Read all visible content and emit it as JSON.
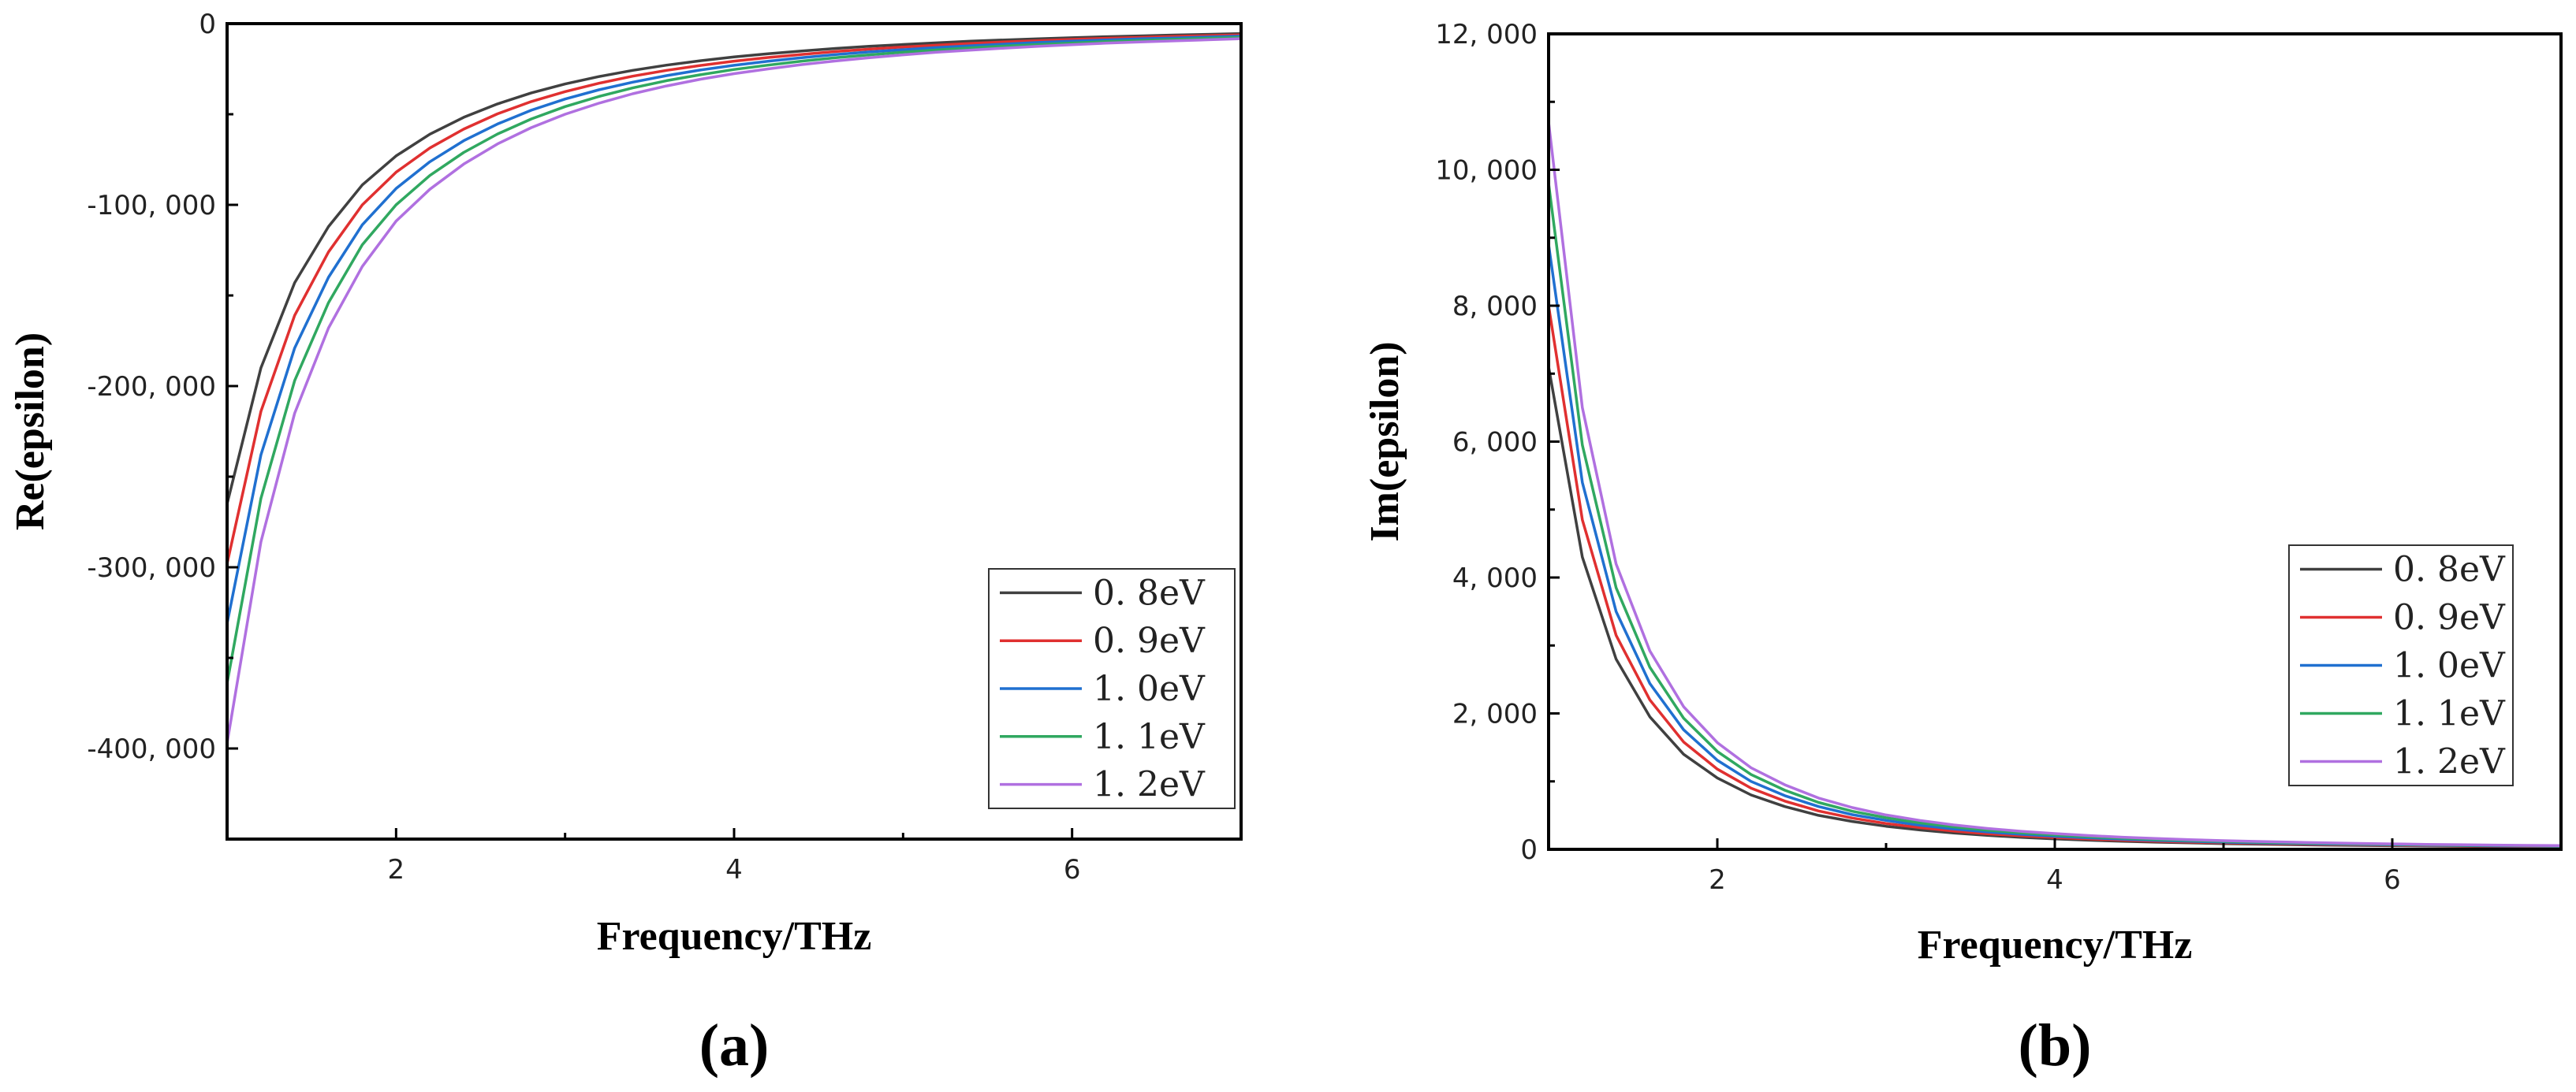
{
  "chart_data": [
    {
      "type": "line",
      "panel_label": "(a)",
      "xlabel": "Frequency/THz",
      "ylabel": "Re(epsilon)",
      "xlim": [
        1,
        7
      ],
      "ylim": [
        -450000,
        0
      ],
      "x": [
        1,
        1.2,
        1.4,
        1.6,
        1.8,
        2,
        2.2,
        2.4,
        2.6,
        2.8,
        3,
        3.2,
        3.4,
        3.6,
        3.8,
        4,
        4.2,
        4.4,
        4.6,
        4.8,
        5,
        5.2,
        5.4,
        5.6,
        5.8,
        6,
        6.2,
        6.4,
        6.6,
        6.8,
        7
      ],
      "x_ticks": [
        2,
        4,
        6
      ],
      "x_tick_labels": [
        "2",
        "4",
        "6"
      ],
      "y_ticks": [
        0,
        -100000,
        -200000,
        -300000,
        -400000
      ],
      "y_tick_labels": [
        "0",
        "-100, 000",
        "-200, 000",
        "-300, 000",
        "-400, 000"
      ],
      "legend_position": "bottom-right",
      "series": [
        {
          "name": "0. 8eV",
          "color": "#404040",
          "values": [
            -265000,
            -190000,
            -143000,
            -112000,
            -89000,
            -73000,
            -61000,
            -51700,
            -44300,
            -38200,
            -33300,
            -29200,
            -25800,
            -22900,
            -20500,
            -18400,
            -16600,
            -15100,
            -13700,
            -12500,
            -11500,
            -10600,
            -9700,
            -9000,
            -8400,
            -7800,
            -7200,
            -6800,
            -6300,
            -5900,
            -5500
          ]
        },
        {
          "name": "0. 9eV",
          "color": "#e03030",
          "values": [
            -298000,
            -214000,
            -161000,
            -126000,
            -100000,
            -82000,
            -68600,
            -58200,
            -49800,
            -43000,
            -37500,
            -32900,
            -29000,
            -25800,
            -23100,
            -20700,
            -18700,
            -17000,
            -15400,
            -14100,
            -12900,
            -11900,
            -10900,
            -10100,
            -9400,
            -8700,
            -8100,
            -7600,
            -7100,
            -6600,
            -6200
          ]
        },
        {
          "name": "1. 0eV",
          "color": "#2070d0",
          "values": [
            -331000,
            -238000,
            -179000,
            -140000,
            -111000,
            -91000,
            -76200,
            -64600,
            -55400,
            -47800,
            -41600,
            -36500,
            -32300,
            -28700,
            -25600,
            -23000,
            -20800,
            -18800,
            -17100,
            -15600,
            -14400,
            -13200,
            -12200,
            -11300,
            -10400,
            -9700,
            -9000,
            -8400,
            -7900,
            -7400,
            -6900
          ]
        },
        {
          "name": "1. 1eV",
          "color": "#30a860",
          "values": [
            -364000,
            -262000,
            -197000,
            -154000,
            -122000,
            -100000,
            -83800,
            -71100,
            -60900,
            -52600,
            -45800,
            -40200,
            -35500,
            -31500,
            -28200,
            -25300,
            -22900,
            -20700,
            -18800,
            -17200,
            -15800,
            -14500,
            -13400,
            -12400,
            -11500,
            -10700,
            -9900,
            -9300,
            -8700,
            -8100,
            -7600
          ]
        },
        {
          "name": "1. 2eV",
          "color": "#b070e0",
          "values": [
            -397000,
            -286000,
            -215000,
            -168000,
            -134000,
            -109000,
            -91400,
            -77500,
            -66400,
            -57400,
            -50000,
            -43900,
            -38700,
            -34400,
            -30700,
            -27600,
            -25000,
            -22600,
            -20600,
            -18800,
            -17200,
            -15800,
            -14600,
            -13500,
            -12500,
            -11600,
            -10800,
            -10100,
            -9500,
            -8900,
            -8300
          ]
        }
      ]
    },
    {
      "type": "line",
      "panel_label": "(b)",
      "xlabel": "Frequency/THz",
      "ylabel": "Im(epsilon)",
      "xlim": [
        1,
        7
      ],
      "ylim": [
        0,
        12000
      ],
      "x": [
        1,
        1.2,
        1.4,
        1.6,
        1.8,
        2,
        2.2,
        2.4,
        2.6,
        2.8,
        3,
        3.2,
        3.4,
        3.6,
        3.8,
        4,
        4.2,
        4.4,
        4.6,
        4.8,
        5,
        5.2,
        5.4,
        5.6,
        5.8,
        6,
        6.2,
        6.4,
        6.6,
        6.8,
        7
      ],
      "x_ticks": [
        2,
        4,
        6
      ],
      "x_tick_labels": [
        "2",
        "4",
        "6"
      ],
      "y_ticks": [
        0,
        2000,
        4000,
        6000,
        8000,
        10000,
        12000
      ],
      "y_tick_labels": [
        "0",
        "2, 000",
        "4, 000",
        "6, 000",
        "8, 000",
        "10, 000",
        "12, 000"
      ],
      "legend_position": "right",
      "series": [
        {
          "name": "0. 8eV",
          "color": "#404040",
          "values": [
            7100,
            4300,
            2800,
            1950,
            1400,
            1050,
            800,
            630,
            500,
            410,
            340,
            285,
            240,
            205,
            177,
            154,
            135,
            119,
            106,
            95,
            85,
            77,
            70,
            63,
            58,
            53,
            49,
            45,
            42,
            39,
            36
          ]
        },
        {
          "name": "0. 9eV",
          "color": "#e03030",
          "values": [
            8000,
            4850,
            3150,
            2200,
            1580,
            1180,
            900,
            710,
            565,
            460,
            380,
            320,
            270,
            230,
            200,
            174,
            152,
            134,
            119,
            106,
            96,
            87,
            79,
            71,
            65,
            60,
            55,
            51,
            47,
            44,
            41
          ]
        },
        {
          "name": "1. 0eV",
          "color": "#2070d0",
          "values": [
            8900,
            5400,
            3500,
            2440,
            1760,
            1310,
            1000,
            790,
            630,
            510,
            425,
            355,
            300,
            256,
            222,
            193,
            169,
            149,
            132,
            118,
            106,
            96,
            87,
            79,
            72,
            66,
            61,
            57,
            52,
            49,
            45
          ]
        },
        {
          "name": "1. 1eV",
          "color": "#30a860",
          "values": [
            9800,
            5950,
            3850,
            2680,
            1930,
            1440,
            1100,
            870,
            690,
            560,
            465,
            390,
            330,
            282,
            244,
            212,
            186,
            164,
            145,
            130,
            117,
            106,
            96,
            87,
            80,
            73,
            67,
            62,
            58,
            53,
            50
          ]
        },
        {
          "name": "1. 2eV",
          "color": "#b070e0",
          "values": [
            10700,
            6500,
            4200,
            2920,
            2100,
            1570,
            1200,
            950,
            755,
            615,
            505,
            425,
            360,
            307,
            266,
            232,
            203,
            179,
            159,
            142,
            128,
            116,
            105,
            95,
            87,
            80,
            73,
            68,
            63,
            58,
            54
          ]
        }
      ]
    }
  ]
}
